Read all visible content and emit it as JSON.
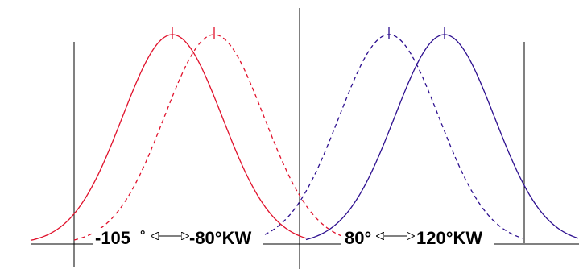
{
  "colors": {
    "red": "#e0112b",
    "blue": "#2d0f8f",
    "axis": "#000000"
  },
  "curves": [
    {
      "id": "red-solid",
      "color": "red",
      "dashed": false,
      "peak_label": "-105°"
    },
    {
      "id": "red-dashed",
      "color": "red",
      "dashed": true,
      "peak_label": "-80°KW"
    },
    {
      "id": "blue-dashed",
      "color": "blue",
      "dashed": true,
      "peak_label": "80°"
    },
    {
      "id": "blue-solid",
      "color": "blue",
      "dashed": false,
      "peak_label": "120°KW"
    }
  ],
  "labels": {
    "left_from": "-105",
    "left_from_deg": "°",
    "left_to": "-80°KW",
    "right_from": "80°",
    "right_to": "120°KW"
  }
}
